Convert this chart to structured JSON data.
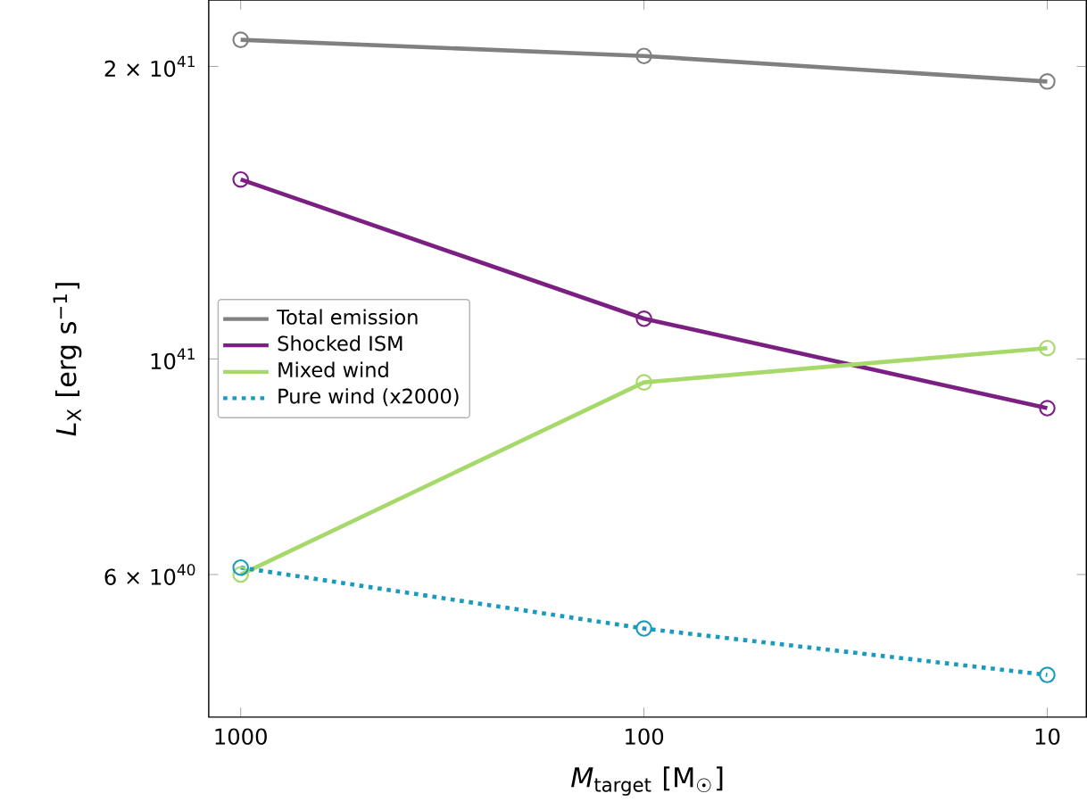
{
  "chart_data": {
    "type": "line",
    "x": [
      1000,
      100,
      10
    ],
    "xlabel": "*M*$_{target}$ [M$_{☉}$]",
    "ylabel": "*L*$_{X}$ [erg s$^{−1}$]",
    "log": "xy",
    "xlim": [
      1200,
      8
    ],
    "ylim": [
      4.28e+40,
      2.34e+41
    ],
    "xticks": [
      1000,
      100,
      10
    ],
    "yticks": [
      {
        "value": 6e+40,
        "label": "6 × 10$^{40}$"
      },
      {
        "value": 1e+41,
        "label": "10$^{41}$"
      },
      {
        "value": 2e+41,
        "label": "2 × 10$^{41}$"
      }
    ],
    "marker": "circle",
    "legend": "left",
    "grid": false,
    "series": [
      {
        "name": "Total emission",
        "color": "#808080",
        "values": [
          2.13e+41,
          2.05e+41,
          1.93e+41
        ]
      },
      {
        "name": "Shocked ISM",
        "color": "#7b1f82",
        "values": [
          1.53e+41,
          1.1e+41,
          8.9e+40
        ]
      },
      {
        "name": "Mixed wind",
        "color": "#a6d96a",
        "values": [
          6e+40,
          9.46e+40,
          1.026e+41
        ]
      },
      {
        "name": "Pure wind (x2000)",
        "color": "#1a9bbd",
        "line_style": "dotted",
        "values": [
          6.1e+40,
          5.28e+40,
          4.73e+40
        ]
      }
    ]
  }
}
